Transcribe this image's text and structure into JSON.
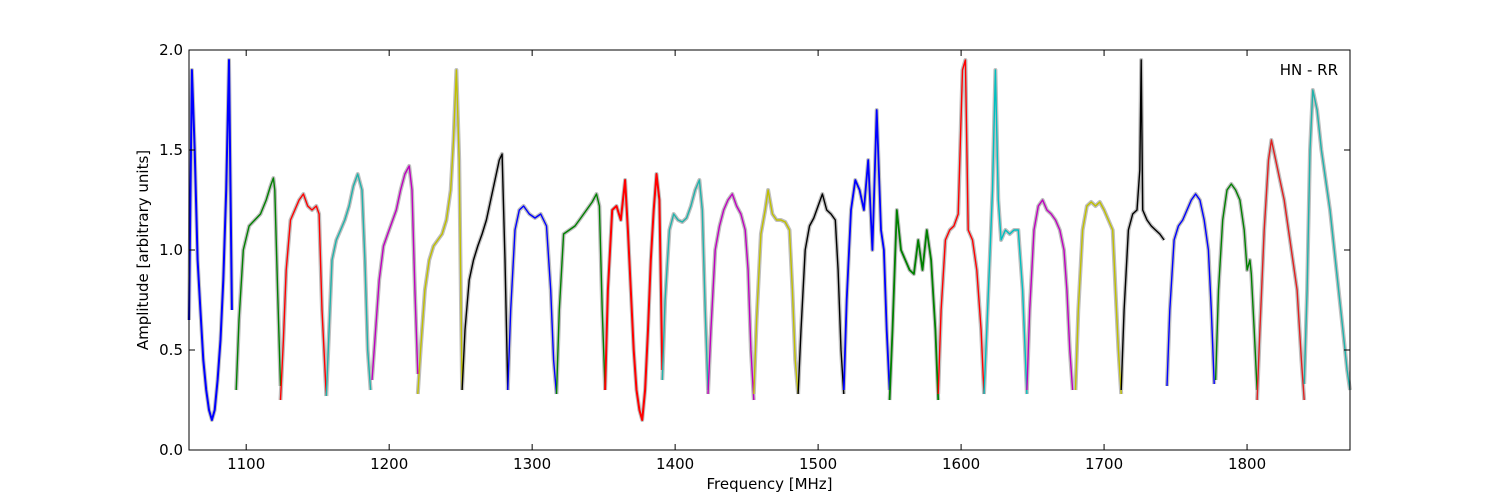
{
  "chart_data": {
    "type": "line",
    "title": "",
    "xlabel": "Frequency [MHz]",
    "ylabel": "Amplitude [arbitrary units]",
    "annotation": "HN - RR",
    "annotation_position": "top-right",
    "xlim": [
      1060,
      1872
    ],
    "ylim": [
      0.0,
      2.0
    ],
    "x_ticks": [
      1100,
      1200,
      1300,
      1400,
      1500,
      1600,
      1700,
      1800
    ],
    "x_tick_labels": [
      "1100",
      "1200",
      "1300",
      "1400",
      "1500",
      "1600",
      "1700",
      "1800"
    ],
    "y_ticks": [
      0.0,
      0.5,
      1.0,
      1.5,
      2.0
    ],
    "y_tick_labels": [
      "0.0",
      "0.5",
      "1.0",
      "1.5",
      "2.0"
    ],
    "grid": false,
    "legend": "none",
    "background_color": "#bfbfbf",
    "series": [
      {
        "color": "#0000ff",
        "lw": 2.0,
        "x": [
          1060,
          1062,
          1064,
          1066,
          1068,
          1070,
          1072,
          1074,
          1076,
          1078,
          1080,
          1082,
          1084,
          1086,
          1088,
          1090
        ],
        "y": [
          0.65,
          1.9,
          1.5,
          0.95,
          0.7,
          0.45,
          0.3,
          0.2,
          0.15,
          0.2,
          0.35,
          0.55,
          0.85,
          1.3,
          1.95,
          0.7
        ]
      },
      {
        "color": "#008000",
        "x": [
          1093,
          1095,
          1098,
          1102,
          1106,
          1110,
          1114,
          1117,
          1119,
          1120,
          1122,
          1124
        ],
        "y": [
          0.3,
          0.65,
          1.0,
          1.12,
          1.15,
          1.18,
          1.25,
          1.32,
          1.36,
          1.3,
          0.8,
          0.32
        ]
      },
      {
        "color": "#ff0000",
        "x": [
          1124,
          1126,
          1128,
          1131,
          1134,
          1137,
          1140,
          1143,
          1146,
          1149,
          1151,
          1153,
          1156
        ],
        "y": [
          0.25,
          0.55,
          0.9,
          1.15,
          1.2,
          1.25,
          1.28,
          1.22,
          1.2,
          1.22,
          1.18,
          0.7,
          0.27
        ]
      },
      {
        "color": "#20b2aa",
        "x": [
          1156,
          1158,
          1160,
          1163,
          1166,
          1169,
          1172,
          1175,
          1178,
          1181,
          1183,
          1185,
          1187
        ],
        "y": [
          0.27,
          0.6,
          0.95,
          1.05,
          1.1,
          1.15,
          1.22,
          1.32,
          1.38,
          1.3,
          0.95,
          0.5,
          0.3
        ]
      },
      {
        "color": "#bf00bf",
        "x": [
          1188,
          1190,
          1193,
          1196,
          1199,
          1202,
          1205,
          1208,
          1211,
          1214,
          1216,
          1218,
          1220
        ],
        "y": [
          0.35,
          0.55,
          0.85,
          1.02,
          1.08,
          1.14,
          1.2,
          1.3,
          1.38,
          1.42,
          1.3,
          0.8,
          0.38
        ]
      },
      {
        "color": "#bfbf00",
        "x": [
          1220,
          1222,
          1225,
          1228,
          1231,
          1234,
          1237,
          1240,
          1243,
          1245,
          1247,
          1249,
          1251
        ],
        "y": [
          0.28,
          0.5,
          0.8,
          0.95,
          1.02,
          1.05,
          1.08,
          1.15,
          1.3,
          1.55,
          1.9,
          1.45,
          0.3
        ]
      },
      {
        "color": "#000000",
        "x": [
          1251,
          1253,
          1256,
          1259,
          1262,
          1265,
          1268,
          1271,
          1274,
          1277,
          1279,
          1281,
          1283
        ],
        "y": [
          0.3,
          0.6,
          0.85,
          0.95,
          1.02,
          1.08,
          1.15,
          1.25,
          1.35,
          1.45,
          1.48,
          0.95,
          0.3
        ]
      },
      {
        "color": "#0000ff",
        "x": [
          1283,
          1285,
          1288,
          1291,
          1294,
          1298,
          1302,
          1306,
          1310,
          1313,
          1315,
          1317
        ],
        "y": [
          0.3,
          0.7,
          1.1,
          1.2,
          1.22,
          1.18,
          1.16,
          1.18,
          1.12,
          0.8,
          0.45,
          0.28
        ]
      },
      {
        "color": "#008000",
        "x": [
          1317,
          1319,
          1322,
          1326,
          1330,
          1334,
          1338,
          1342,
          1345,
          1347,
          1349,
          1351
        ],
        "y": [
          0.28,
          0.7,
          1.08,
          1.1,
          1.12,
          1.16,
          1.2,
          1.24,
          1.28,
          1.22,
          0.7,
          0.3
        ]
      },
      {
        "color": "#ff0000",
        "lw": 2.0,
        "x": [
          1351,
          1353,
          1356,
          1359,
          1362,
          1365,
          1367,
          1369,
          1371,
          1373,
          1375,
          1377,
          1379,
          1381,
          1383,
          1385,
          1387,
          1389,
          1391
        ],
        "y": [
          0.3,
          0.8,
          1.2,
          1.22,
          1.15,
          1.35,
          1.1,
          0.8,
          0.5,
          0.3,
          0.2,
          0.15,
          0.3,
          0.6,
          0.95,
          1.2,
          1.38,
          1.25,
          0.4
        ]
      },
      {
        "color": "#20b2aa",
        "x": [
          1391,
          1393,
          1396,
          1399,
          1402,
          1405,
          1408,
          1411,
          1414,
          1417,
          1419,
          1421,
          1423
        ],
        "y": [
          0.35,
          0.75,
          1.1,
          1.18,
          1.15,
          1.14,
          1.16,
          1.22,
          1.3,
          1.35,
          1.2,
          0.7,
          0.3
        ]
      },
      {
        "color": "#bf00bf",
        "x": [
          1423,
          1425,
          1428,
          1431,
          1434,
          1437,
          1440,
          1443,
          1446,
          1449,
          1451,
          1453,
          1455
        ],
        "y": [
          0.28,
          0.6,
          1.0,
          1.12,
          1.2,
          1.25,
          1.28,
          1.22,
          1.18,
          1.1,
          0.9,
          0.5,
          0.25
        ]
      },
      {
        "color": "#bfbf00",
        "x": [
          1455,
          1457,
          1460,
          1463,
          1465,
          1468,
          1471,
          1474,
          1477,
          1480,
          1482,
          1484,
          1486
        ],
        "y": [
          0.28,
          0.65,
          1.08,
          1.2,
          1.3,
          1.18,
          1.15,
          1.15,
          1.14,
          1.1,
          0.8,
          0.45,
          0.28
        ]
      },
      {
        "color": "#000000",
        "x": [
          1486,
          1488,
          1491,
          1494,
          1497,
          1500,
          1503,
          1506,
          1509,
          1512,
          1514,
          1516,
          1518
        ],
        "y": [
          0.28,
          0.6,
          1.0,
          1.12,
          1.16,
          1.22,
          1.28,
          1.2,
          1.18,
          1.15,
          0.9,
          0.5,
          0.28
        ]
      },
      {
        "color": "#0000ff",
        "lw": 1.8,
        "x": [
          1518,
          1520,
          1523,
          1526,
          1529,
          1532,
          1535,
          1538,
          1541,
          1544,
          1546,
          1548,
          1550
        ],
        "y": [
          0.3,
          0.75,
          1.2,
          1.35,
          1.3,
          1.2,
          1.45,
          1.0,
          1.7,
          1.1,
          1.0,
          0.6,
          0.3
        ]
      },
      {
        "color": "#008000",
        "lw": 1.8,
        "x": [
          1550,
          1552,
          1555,
          1558,
          1561,
          1564,
          1567,
          1570,
          1573,
          1576,
          1579,
          1582,
          1584
        ],
        "y": [
          0.25,
          0.6,
          1.2,
          1.0,
          0.95,
          0.9,
          0.88,
          1.05,
          0.9,
          1.1,
          0.95,
          0.6,
          0.25
        ]
      },
      {
        "color": "#ff0000",
        "x": [
          1584,
          1586,
          1589,
          1592,
          1595,
          1598,
          1601,
          1603,
          1605,
          1608,
          1611,
          1614,
          1616
        ],
        "y": [
          0.28,
          0.7,
          1.05,
          1.1,
          1.12,
          1.18,
          1.9,
          1.95,
          1.1,
          1.05,
          0.9,
          0.6,
          0.28
        ]
      },
      {
        "color": "#00bfbf",
        "x": [
          1616,
          1618,
          1620,
          1622,
          1624,
          1626,
          1628,
          1631,
          1634,
          1637,
          1640,
          1643,
          1646
        ],
        "y": [
          0.28,
          0.6,
          0.95,
          1.3,
          1.9,
          1.25,
          1.05,
          1.1,
          1.08,
          1.1,
          1.1,
          0.8,
          0.28
        ]
      },
      {
        "color": "#bf00bf",
        "x": [
          1646,
          1648,
          1651,
          1654,
          1657,
          1660,
          1663,
          1666,
          1669,
          1672,
          1674,
          1676,
          1678
        ],
        "y": [
          0.3,
          0.7,
          1.1,
          1.22,
          1.25,
          1.2,
          1.18,
          1.15,
          1.1,
          1.0,
          0.8,
          0.5,
          0.3
        ]
      },
      {
        "color": "#bfbf00",
        "x": [
          1680,
          1682,
          1685,
          1688,
          1691,
          1694,
          1697,
          1700,
          1703,
          1706,
          1708,
          1710,
          1712
        ],
        "y": [
          0.3,
          0.7,
          1.1,
          1.22,
          1.24,
          1.22,
          1.24,
          1.2,
          1.15,
          1.1,
          0.8,
          0.5,
          0.28
        ]
      },
      {
        "color": "#000000",
        "x": [
          1712,
          1714,
          1717,
          1720,
          1723,
          1725,
          1726,
          1727,
          1730,
          1733,
          1736,
          1739,
          1742
        ],
        "y": [
          0.3,
          0.7,
          1.1,
          1.18,
          1.2,
          1.4,
          1.95,
          1.2,
          1.15,
          1.12,
          1.1,
          1.08,
          1.05
        ]
      },
      {
        "color": "#0000ff",
        "x": [
          1744,
          1746,
          1749,
          1752,
          1755,
          1758,
          1761,
          1764,
          1767,
          1770,
          1773,
          1775,
          1777
        ],
        "y": [
          0.32,
          0.7,
          1.05,
          1.12,
          1.15,
          1.2,
          1.25,
          1.28,
          1.25,
          1.15,
          1.0,
          0.7,
          0.33
        ]
      },
      {
        "color": "#008000",
        "x": [
          1778,
          1780,
          1783,
          1786,
          1789,
          1792,
          1795,
          1798,
          1800,
          1802,
          1803,
          1805,
          1807
        ],
        "y": [
          0.35,
          0.8,
          1.15,
          1.3,
          1.33,
          1.3,
          1.25,
          1.1,
          0.9,
          0.95,
          0.88,
          0.6,
          0.3
        ]
      },
      {
        "color": "#e02020",
        "x": [
          1807,
          1809,
          1812,
          1815,
          1817,
          1820,
          1823,
          1826,
          1829,
          1832,
          1835,
          1838,
          1840
        ],
        "y": [
          0.25,
          0.6,
          1.1,
          1.45,
          1.55,
          1.45,
          1.35,
          1.25,
          1.1,
          0.95,
          0.8,
          0.45,
          0.25
        ]
      },
      {
        "color": "#20b2aa",
        "x": [
          1840,
          1842,
          1844,
          1846,
          1849,
          1852,
          1855,
          1858,
          1861,
          1864,
          1867,
          1870,
          1872
        ],
        "y": [
          0.33,
          0.8,
          1.5,
          1.8,
          1.7,
          1.5,
          1.35,
          1.2,
          1.0,
          0.8,
          0.6,
          0.4,
          0.3
        ]
      }
    ]
  }
}
